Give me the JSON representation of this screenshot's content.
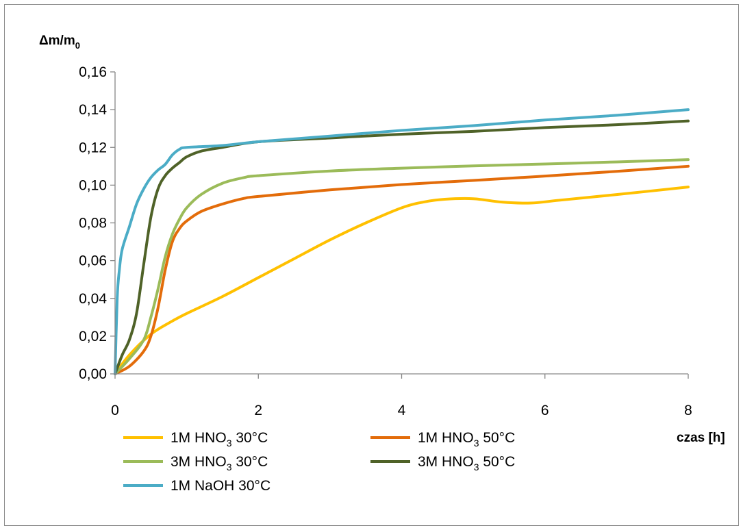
{
  "chart_data": {
    "type": "line",
    "title": "",
    "ylabel": {
      "main": "Δm/m",
      "sub": "0"
    },
    "xlabel": "czas [h]",
    "xlim": [
      0,
      8
    ],
    "ylim": [
      0,
      0.16
    ],
    "x_ticks": [
      0,
      2,
      4,
      6,
      8
    ],
    "x_tick_labels": [
      "0",
      "2",
      "4",
      "6",
      "8"
    ],
    "y_ticks": [
      0,
      0.02,
      0.04,
      0.06,
      0.08,
      0.1,
      0.12,
      0.14,
      0.16
    ],
    "y_tick_labels": [
      "0,00",
      "0,02",
      "0,04",
      "0,06",
      "0,08",
      "0,10",
      "0,12",
      "0,14",
      "0,16"
    ],
    "grid": false,
    "legend_position": "bottom",
    "series": [
      {
        "name": "1M HNO3 30°C",
        "legend": {
          "pre": "1M HNO",
          "sub": "3",
          "post": " 30°C"
        },
        "color": "#FFC000",
        "points": [
          [
            0,
            0
          ],
          [
            0.2,
            0.01
          ],
          [
            0.5,
            0.021
          ],
          [
            0.8,
            0.028
          ],
          [
            1,
            0.032
          ],
          [
            1.5,
            0.041
          ],
          [
            2,
            0.051
          ],
          [
            2.5,
            0.061
          ],
          [
            3,
            0.071
          ],
          [
            3.5,
            0.08
          ],
          [
            4,
            0.088
          ],
          [
            4.3,
            0.091
          ],
          [
            4.6,
            0.0925
          ],
          [
            5,
            0.0928
          ],
          [
            5.4,
            0.091
          ],
          [
            5.8,
            0.0905
          ],
          [
            6.2,
            0.092
          ],
          [
            7,
            0.095
          ],
          [
            8,
            0.099
          ]
        ]
      },
      {
        "name": "1M HNO3 50°C",
        "legend": {
          "pre": "1M HNO",
          "sub": "3",
          "post": " 50°C"
        },
        "color": "#E36C0A",
        "points": [
          [
            0,
            0
          ],
          [
            0.2,
            0.004
          ],
          [
            0.4,
            0.012
          ],
          [
            0.5,
            0.02
          ],
          [
            0.6,
            0.035
          ],
          [
            0.7,
            0.055
          ],
          [
            0.8,
            0.07
          ],
          [
            0.9,
            0.077
          ],
          [
            1,
            0.081
          ],
          [
            1.2,
            0.086
          ],
          [
            1.5,
            0.09
          ],
          [
            1.8,
            0.093
          ],
          [
            2,
            0.094
          ],
          [
            3,
            0.0975
          ],
          [
            4,
            0.1003
          ],
          [
            5,
            0.1025
          ],
          [
            6,
            0.1048
          ],
          [
            7,
            0.1073
          ],
          [
            8,
            0.11
          ]
        ]
      },
      {
        "name": "3M HNO3 30°C",
        "legend": {
          "pre": "3M HNO",
          "sub": "3",
          "post": " 30°C"
        },
        "color": "#9BBB59",
        "points": [
          [
            0,
            0
          ],
          [
            0.2,
            0.008
          ],
          [
            0.4,
            0.018
          ],
          [
            0.5,
            0.03
          ],
          [
            0.6,
            0.045
          ],
          [
            0.7,
            0.062
          ],
          [
            0.8,
            0.074
          ],
          [
            0.9,
            0.082
          ],
          [
            1,
            0.088
          ],
          [
            1.2,
            0.095
          ],
          [
            1.5,
            0.101
          ],
          [
            1.8,
            0.104
          ],
          [
            2,
            0.105
          ],
          [
            3,
            0.1075
          ],
          [
            4,
            0.109
          ],
          [
            5,
            0.1102
          ],
          [
            6,
            0.1112
          ],
          [
            7,
            0.1123
          ],
          [
            8,
            0.1135
          ]
        ]
      },
      {
        "name": "3M HNO3 50°C",
        "legend": {
          "pre": "3M HNO",
          "sub": "3",
          "post": " 50°C"
        },
        "color": "#4F6228",
        "points": [
          [
            0,
            0
          ],
          [
            0.1,
            0.01
          ],
          [
            0.2,
            0.018
          ],
          [
            0.3,
            0.032
          ],
          [
            0.4,
            0.058
          ],
          [
            0.5,
            0.083
          ],
          [
            0.6,
            0.098
          ],
          [
            0.7,
            0.105
          ],
          [
            0.8,
            0.109
          ],
          [
            0.9,
            0.112
          ],
          [
            1,
            0.115
          ],
          [
            1.2,
            0.118
          ],
          [
            1.5,
            0.12
          ],
          [
            2,
            0.123
          ],
          [
            3,
            0.125
          ],
          [
            4,
            0.127
          ],
          [
            5,
            0.1285
          ],
          [
            6,
            0.1305
          ],
          [
            7,
            0.132
          ],
          [
            8,
            0.134
          ]
        ]
      },
      {
        "name": "1M NaOH 30°C",
        "legend": {
          "pre": "1M NaOH 30°C",
          "sub": "",
          "post": ""
        },
        "color": "#4BACC6",
        "points": [
          [
            0,
            0
          ],
          [
            0.03,
            0.04
          ],
          [
            0.06,
            0.055
          ],
          [
            0.1,
            0.066
          ],
          [
            0.2,
            0.078
          ],
          [
            0.3,
            0.09
          ],
          [
            0.4,
            0.098
          ],
          [
            0.5,
            0.104
          ],
          [
            0.6,
            0.108
          ],
          [
            0.7,
            0.111
          ],
          [
            0.8,
            0.116
          ],
          [
            0.9,
            0.119
          ],
          [
            1,
            0.12
          ],
          [
            1.5,
            0.121
          ],
          [
            2,
            0.123
          ],
          [
            3,
            0.126
          ],
          [
            4,
            0.129
          ],
          [
            5,
            0.1315
          ],
          [
            6,
            0.1345
          ],
          [
            7,
            0.137
          ],
          [
            8,
            0.14
          ]
        ]
      }
    ]
  }
}
